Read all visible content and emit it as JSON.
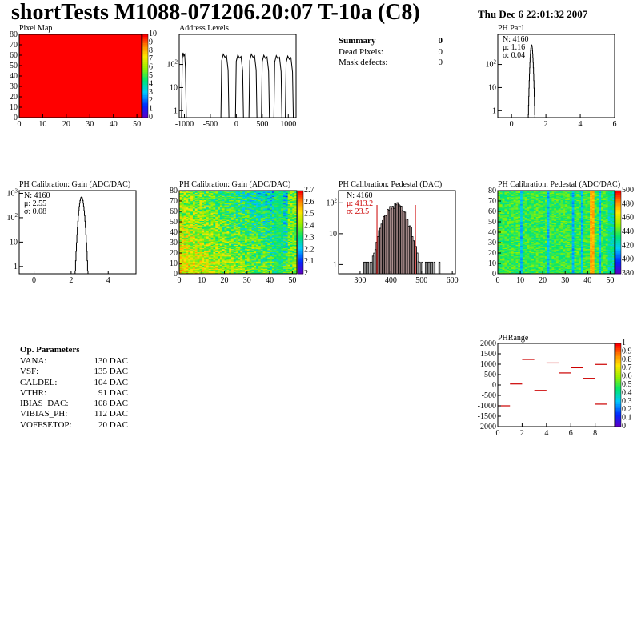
{
  "header": {
    "title": "shortTests M1088-071206.20:07 T-10a (C8)",
    "date": "Thu Dec  6 22:01:32 2007"
  },
  "summary": {
    "title": "Summary",
    "title_value": "0",
    "rows": [
      {
        "label": "Dead Pixels:",
        "value": "0"
      },
      {
        "label": "Mask defects:",
        "value": "0"
      }
    ]
  },
  "op_params": {
    "title": "Op. Parameters",
    "rows": [
      {
        "label": "VANA:",
        "value": "130 DAC"
      },
      {
        "label": "VSF:",
        "value": "135 DAC"
      },
      {
        "label": "CALDEL:",
        "value": "104 DAC"
      },
      {
        "label": "VTHR:",
        "value": "91 DAC"
      },
      {
        "label": "IBIAS_DAC:",
        "value": "108 DAC"
      },
      {
        "label": "VIBIAS_PH:",
        "value": "112 DAC"
      },
      {
        "label": "VOFFSETOP:",
        "value": "20 DAC"
      }
    ]
  },
  "chart_data": [
    {
      "id": "pixel-map",
      "type": "heatmap",
      "title": "Pixel Map",
      "xlim": [
        0,
        52
      ],
      "ylim": [
        0,
        80
      ],
      "xticks": [
        "0",
        "10",
        "20",
        "30",
        "40",
        "50"
      ],
      "yticks": [
        "0",
        "10",
        "20",
        "30",
        "40",
        "50",
        "60",
        "70",
        "80"
      ],
      "fill_color": "#ff0000",
      "zticks": [
        "0",
        "1",
        "2",
        "3",
        "4",
        "5",
        "6",
        "7",
        "8",
        "9",
        "10"
      ]
    },
    {
      "id": "address-levels",
      "type": "bar",
      "title": "Address Levels",
      "xlim": [
        -1100,
        1150
      ],
      "log_y": true,
      "ylim": [
        0.5,
        2000
      ],
      "xticks": [
        "-1000",
        "-500",
        "0",
        "500",
        "1000"
      ],
      "yticks": [
        "1",
        "10",
        "10^2"
      ],
      "peaks": [
        {
          "center": -1010,
          "height": 320
        },
        {
          "center": -220,
          "height": 280
        },
        {
          "center": 60,
          "height": 260
        },
        {
          "center": 320,
          "height": 280
        },
        {
          "center": 560,
          "height": 250
        },
        {
          "center": 800,
          "height": 240
        },
        {
          "center": 1020,
          "height": 230
        }
      ]
    },
    {
      "id": "ph-par1",
      "type": "bar",
      "title": "PH Par1",
      "xlim": [
        -0.8,
        6
      ],
      "log_y": true,
      "ylim": [
        0.5,
        2000
      ],
      "xticks": [
        "0",
        "2",
        "4",
        "6"
      ],
      "yticks": [
        "1",
        "10",
        "10^2"
      ],
      "stats": {
        "N": "4160",
        "mu": "1.16",
        "sigma": "0.04"
      },
      "peaks": [
        {
          "center": 1.16,
          "height": 700
        }
      ]
    },
    {
      "id": "gain-hist",
      "type": "bar",
      "title": "PH Calibration: Gain (ADC/DAC)",
      "xlim": [
        -0.8,
        5.5
      ],
      "log_y": true,
      "ylim": [
        0.5,
        1300
      ],
      "xticks": [
        "0",
        "2",
        "4"
      ],
      "yticks": [
        "1",
        "10",
        "10^2",
        "10^3"
      ],
      "stats": {
        "N": "4160",
        "mu": "2.55",
        "sigma": "0.08"
      },
      "peaks": [
        {
          "center": 2.55,
          "height": 700
        }
      ]
    },
    {
      "id": "gain-map",
      "type": "heatmap",
      "title": "PH Calibration: Gain (ADC/DAC)",
      "xlim": [
        0,
        52
      ],
      "ylim": [
        0,
        80
      ],
      "xticks": [
        "0",
        "10",
        "20",
        "30",
        "40",
        "50"
      ],
      "yticks": [
        "0",
        "10",
        "20",
        "30",
        "40",
        "50",
        "60",
        "70",
        "80"
      ],
      "zticks": [
        "2",
        "2.1",
        "2.2",
        "2.3",
        "2.4",
        "2.5",
        "2.6",
        "2.7"
      ]
    },
    {
      "id": "pedestal-hist",
      "type": "bar",
      "title": "PH Calibration: Pedestal (DAC)",
      "xlim": [
        230,
        610
      ],
      "log_y": true,
      "ylim": [
        0.5,
        250
      ],
      "xticks": [
        "300",
        "400",
        "500",
        "600"
      ],
      "yticks": [
        "1",
        "10",
        "10^2"
      ],
      "stats": {
        "N": "4160",
        "mu": "413.2",
        "sigma": "23.5"
      },
      "cut_lines": [
        355,
        480
      ],
      "peaks": [
        {
          "center": 413,
          "height": 90
        }
      ]
    },
    {
      "id": "pedestal-map",
      "type": "heatmap",
      "title": "PH Calibration: Pedestal (ADC/DAC)",
      "xlim": [
        0,
        52
      ],
      "ylim": [
        0,
        80
      ],
      "xticks": [
        "0",
        "10",
        "20",
        "30",
        "40",
        "50"
      ],
      "yticks": [
        "0",
        "10",
        "20",
        "30",
        "40",
        "50",
        "60",
        "70",
        "80"
      ],
      "zticks": [
        "380",
        "400",
        "420",
        "440",
        "460",
        "480",
        "500"
      ]
    },
    {
      "id": "ph-range",
      "type": "scatter",
      "title": "PHRange",
      "xlim": [
        0,
        9.6
      ],
      "ylim": [
        -2000,
        2000
      ],
      "xticks": [
        "0",
        "2",
        "4",
        "6",
        "8"
      ],
      "yticks": [
        "-2000",
        "-1500",
        "-1000",
        "-500",
        "0",
        "500",
        "1000",
        "1500",
        "2000"
      ],
      "zticks": [
        "0",
        "0.1",
        "0.2",
        "0.3",
        "0.4",
        "0.5",
        "0.6",
        "0.7",
        "0.8",
        "0.9",
        "1"
      ],
      "points": [
        {
          "x": 0.5,
          "y": -1000
        },
        {
          "x": 1.5,
          "y": 50
        },
        {
          "x": 2.5,
          "y": 1230
        },
        {
          "x": 3.5,
          "y": -260
        },
        {
          "x": 4.5,
          "y": 1060
        },
        {
          "x": 5.5,
          "y": 580
        },
        {
          "x": 6.5,
          "y": 830
        },
        {
          "x": 7.5,
          "y": 320
        },
        {
          "x": 8.5,
          "y": 990
        },
        {
          "x": 8.5,
          "y": -920
        }
      ]
    }
  ]
}
